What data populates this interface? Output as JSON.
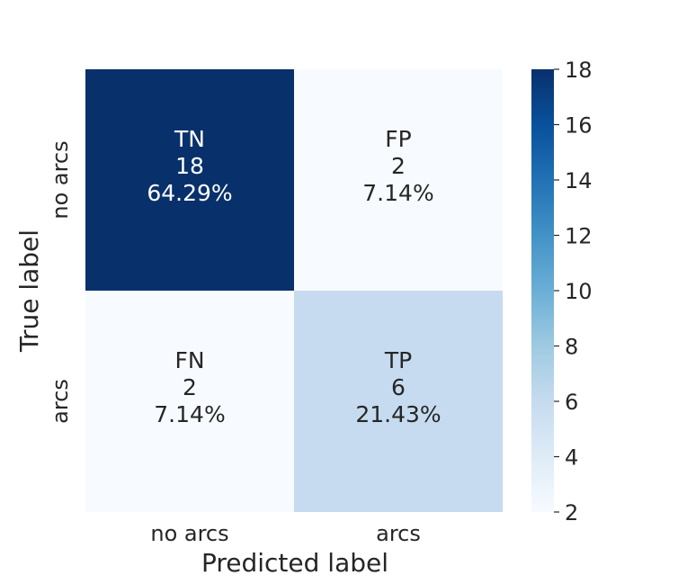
{
  "chart_data": {
    "type": "heatmap",
    "xlabel": "Predicted label",
    "ylabel": "True label",
    "x_categories": [
      "no arcs",
      "arcs"
    ],
    "y_categories": [
      "no arcs",
      "arcs"
    ],
    "matrix": [
      [
        18,
        2
      ],
      [
        2,
        6
      ]
    ],
    "cell_labels": [
      [
        {
          "name": "TN",
          "count": "18",
          "percent": "64.29%"
        },
        {
          "name": "FP",
          "count": "2",
          "percent": "7.14%"
        }
      ],
      [
        {
          "name": "FN",
          "count": "2",
          "percent": "7.14%"
        },
        {
          "name": "TP",
          "count": "6",
          "percent": "21.43%"
        }
      ]
    ],
    "colorbar": {
      "colormap": "Blues",
      "vmin": 2,
      "vmax": 18,
      "ticks": [
        "2",
        "4",
        "6",
        "8",
        "10",
        "12",
        "14",
        "16",
        "18"
      ]
    }
  }
}
